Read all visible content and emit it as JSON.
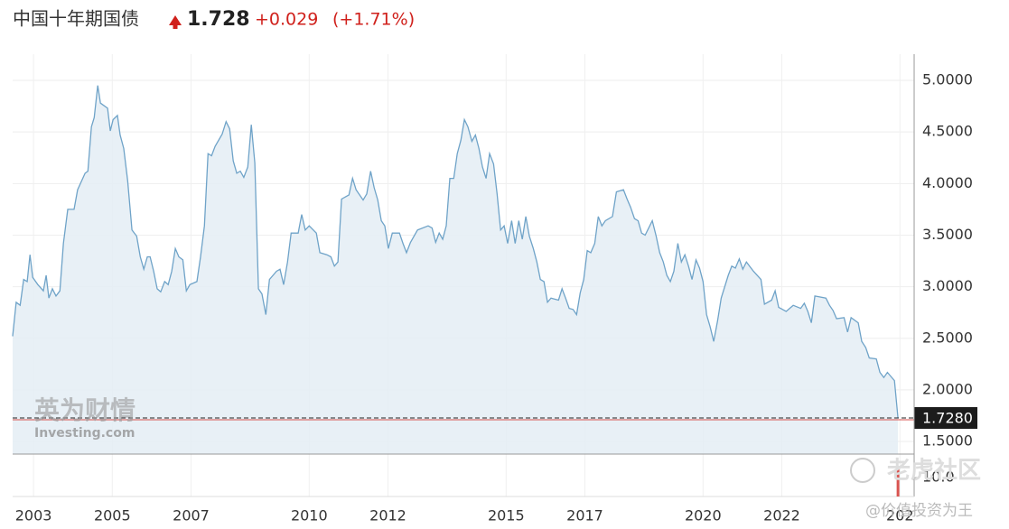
{
  "header": {
    "title": "中国十年期国债",
    "price": "1.728",
    "change": "+0.029",
    "change_pct": "(+1.71%)"
  },
  "watermarks": {
    "brand_cn": "英为财情",
    "brand_en": "Investing.com",
    "community": "老虎社区",
    "author": "@价值投资为王"
  },
  "chart_data": {
    "type": "area",
    "x": [
      2002.47,
      2002.56,
      2002.66,
      2002.75,
      2002.84,
      2002.91,
      2002.98,
      2003.11,
      2003.25,
      2003.32,
      2003.39,
      2003.48,
      2003.57,
      2003.67,
      2003.76,
      2003.87,
      2004.03,
      2004.12,
      2004.31,
      2004.38,
      2004.47,
      2004.54,
      2004.63,
      2004.7,
      2004.88,
      2004.95,
      2005.02,
      2005.13,
      2005.2,
      2005.29,
      2005.39,
      2005.5,
      2005.62,
      2005.71,
      2005.8,
      2005.89,
      2005.96,
      2006.05,
      2006.14,
      2006.23,
      2006.33,
      2006.42,
      2006.51,
      2006.6,
      2006.69,
      2006.79,
      2006.88,
      2006.97,
      2007.15,
      2007.24,
      2007.34,
      2007.43,
      2007.52,
      2007.61,
      2007.79,
      2007.89,
      2007.98,
      2008.07,
      2008.16,
      2008.25,
      2008.34,
      2008.44,
      2008.53,
      2008.62,
      2008.71,
      2008.8,
      2008.9,
      2008.99,
      2009.17,
      2009.26,
      2009.35,
      2009.45,
      2009.54,
      2009.72,
      2009.81,
      2009.9,
      2010.0,
      2010.18,
      2010.27,
      2010.45,
      2010.55,
      2010.64,
      2010.73,
      2010.82,
      2011.01,
      2011.1,
      2011.19,
      2011.37,
      2011.46,
      2011.56,
      2011.65,
      2011.74,
      2011.83,
      2011.92,
      2012.01,
      2012.11,
      2012.29,
      2012.38,
      2012.47,
      2012.57,
      2012.75,
      2013.02,
      2013.12,
      2013.21,
      2013.3,
      2013.39,
      2013.48,
      2013.57,
      2013.67,
      2013.76,
      2013.85,
      2013.94,
      2014.03,
      2014.13,
      2014.22,
      2014.31,
      2014.4,
      2014.49,
      2014.58,
      2014.68,
      2014.77,
      2014.86,
      2014.95,
      2015.04,
      2015.14,
      2015.23,
      2015.32,
      2015.41,
      2015.5,
      2015.59,
      2015.69,
      2015.78,
      2015.87,
      2015.96,
      2016.05,
      2016.14,
      2016.33,
      2016.42,
      2016.51,
      2016.6,
      2016.7,
      2016.79,
      2016.88,
      2016.97,
      2017.06,
      2017.15,
      2017.25,
      2017.34,
      2017.43,
      2017.52,
      2017.7,
      2017.8,
      2017.98,
      2018.07,
      2018.16,
      2018.26,
      2018.35,
      2018.44,
      2018.53,
      2018.71,
      2018.81,
      2018.9,
      2018.99,
      2019.08,
      2019.17,
      2019.26,
      2019.36,
      2019.45,
      2019.54,
      2019.63,
      2019.72,
      2019.82,
      2019.91,
      2020.0,
      2020.09,
      2020.18,
      2020.27,
      2020.37,
      2020.46,
      2020.64,
      2020.73,
      2020.82,
      2020.92,
      2021.01,
      2021.1,
      2021.28,
      2021.47,
      2021.56,
      2021.74,
      2021.83,
      2021.92,
      2022.11,
      2022.29,
      2022.48,
      2022.57,
      2022.66,
      2022.75,
      2022.84,
      2023.12,
      2023.21,
      2023.3,
      2023.39,
      2023.58,
      2023.67,
      2023.76,
      2023.94,
      2024.03,
      2024.13,
      2024.22,
      2024.4,
      2024.49,
      2024.59,
      2024.68,
      2024.86,
      2024.95
    ],
    "series": [
      {
        "color": "#6fa3c8",
        "fill": "#e4edf5",
        "values": [
          2.52,
          2.85,
          2.82,
          3.07,
          3.05,
          3.31,
          3.09,
          3.02,
          2.96,
          3.11,
          2.89,
          2.98,
          2.91,
          2.96,
          3.42,
          3.75,
          3.75,
          3.94,
          4.1,
          4.12,
          4.55,
          4.64,
          4.95,
          4.78,
          4.73,
          4.51,
          4.62,
          4.66,
          4.47,
          4.34,
          4.03,
          3.55,
          3.49,
          3.29,
          3.17,
          3.29,
          3.29,
          3.15,
          2.98,
          2.95,
          3.05,
          3.02,
          3.15,
          3.37,
          3.29,
          3.26,
          2.96,
          3.02,
          3.05,
          3.29,
          3.59,
          4.29,
          4.27,
          4.36,
          4.48,
          4.6,
          4.53,
          4.22,
          4.1,
          4.12,
          4.06,
          4.16,
          4.57,
          4.2,
          2.98,
          2.93,
          2.73,
          3.07,
          3.15,
          3.17,
          3.02,
          3.24,
          3.52,
          3.52,
          3.7,
          3.55,
          3.59,
          3.52,
          3.33,
          3.31,
          3.29,
          3.2,
          3.24,
          3.85,
          3.89,
          4.05,
          3.94,
          3.84,
          3.9,
          4.12,
          3.96,
          3.84,
          3.64,
          3.59,
          3.37,
          3.52,
          3.52,
          3.42,
          3.33,
          3.43,
          3.55,
          3.59,
          3.57,
          3.43,
          3.52,
          3.46,
          3.59,
          4.05,
          4.05,
          4.29,
          4.42,
          4.62,
          4.55,
          4.41,
          4.47,
          4.34,
          4.16,
          4.05,
          4.29,
          4.19,
          3.9,
          3.55,
          3.59,
          3.42,
          3.64,
          3.42,
          3.64,
          3.46,
          3.68,
          3.49,
          3.37,
          3.24,
          3.07,
          3.05,
          2.85,
          2.89,
          2.87,
          2.98,
          2.89,
          2.79,
          2.78,
          2.73,
          2.94,
          3.07,
          3.35,
          3.33,
          3.42,
          3.68,
          3.59,
          3.64,
          3.68,
          3.92,
          3.94,
          3.85,
          3.77,
          3.66,
          3.64,
          3.52,
          3.5,
          3.64,
          3.49,
          3.33,
          3.24,
          3.11,
          3.05,
          3.15,
          3.42,
          3.24,
          3.31,
          3.2,
          3.07,
          3.26,
          3.18,
          3.05,
          2.73,
          2.61,
          2.47,
          2.67,
          2.89,
          3.11,
          3.2,
          3.18,
          3.27,
          3.17,
          3.24,
          3.15,
          3.07,
          2.83,
          2.87,
          2.96,
          2.8,
          2.76,
          2.82,
          2.79,
          2.84,
          2.76,
          2.65,
          2.91,
          2.89,
          2.82,
          2.77,
          2.69,
          2.7,
          2.56,
          2.7,
          2.65,
          2.47,
          2.41,
          2.31,
          2.3,
          2.17,
          2.12,
          2.17,
          2.09,
          1.728
        ]
      }
    ],
    "last_label": "1.7280",
    "xlim": [
      2002.47,
      2025.36
    ],
    "xticks": [
      2003,
      2005,
      2007,
      2010,
      2012,
      2015,
      2017,
      2020,
      2022,
      {
        "value": 2025,
        "label": "202"
      }
    ],
    "ylim": [
      1.378,
      5.254
    ],
    "yticks": [
      {
        "value": 1.5,
        "label": "1.5000"
      },
      {
        "value": 2,
        "label": "2.0000"
      },
      {
        "value": 2.5,
        "label": "2.5000"
      },
      {
        "value": 3,
        "label": "3.0000"
      },
      {
        "value": 3.5,
        "label": "3.5000"
      },
      {
        "value": 4,
        "label": "4.0000"
      },
      {
        "value": 4.5,
        "label": "4.5000"
      },
      {
        "value": 5,
        "label": "5.0000"
      }
    ],
    "grid": true,
    "volume": {
      "x": [
        2024.95
      ],
      "values": [
        15
      ],
      "color": "#d9534f",
      "ylim": [
        0,
        22.5
      ],
      "yticks": [
        {
          "value": 10,
          "label": "10.0"
        }
      ]
    }
  }
}
